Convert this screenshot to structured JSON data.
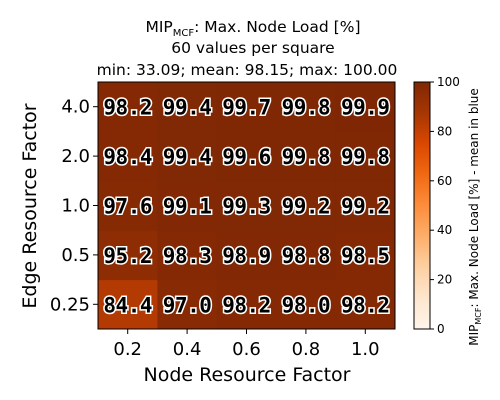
{
  "chart_data": {
    "type": "heatmap",
    "title": {
      "metric_main": "MIP",
      "metric_sub": "MCF",
      "metric_rest": ": Max. Node Load [%]",
      "line2": "60 values per square",
      "line3": "min: 33.09; mean: 98.15; max: 100.00"
    },
    "xlabel": "Node Resource Factor",
    "ylabel": "Edge Resource Factor",
    "x_categories": [
      "0.2",
      "0.4",
      "0.6",
      "0.8",
      "1.0"
    ],
    "y_categories": [
      "0.25",
      "0.5",
      "1.0",
      "2.0",
      "4.0"
    ],
    "values": [
      [
        84.4,
        97.0,
        98.2,
        98.0,
        98.2
      ],
      [
        95.2,
        98.3,
        98.9,
        98.8,
        98.5
      ],
      [
        97.6,
        99.1,
        99.3,
        99.2,
        99.2
      ],
      [
        98.4,
        99.4,
        99.6,
        99.8,
        99.8
      ],
      [
        98.2,
        99.4,
        99.7,
        99.8,
        99.9
      ]
    ],
    "colorbar": {
      "range": [
        0,
        100
      ],
      "ticks": [
        0,
        20,
        40,
        60,
        80,
        100
      ],
      "label_main": "MIP",
      "label_sub": "MCF",
      "label_rest": ": Max. Node Load [%] - mean in blue",
      "colormap": "Oranges"
    }
  }
}
